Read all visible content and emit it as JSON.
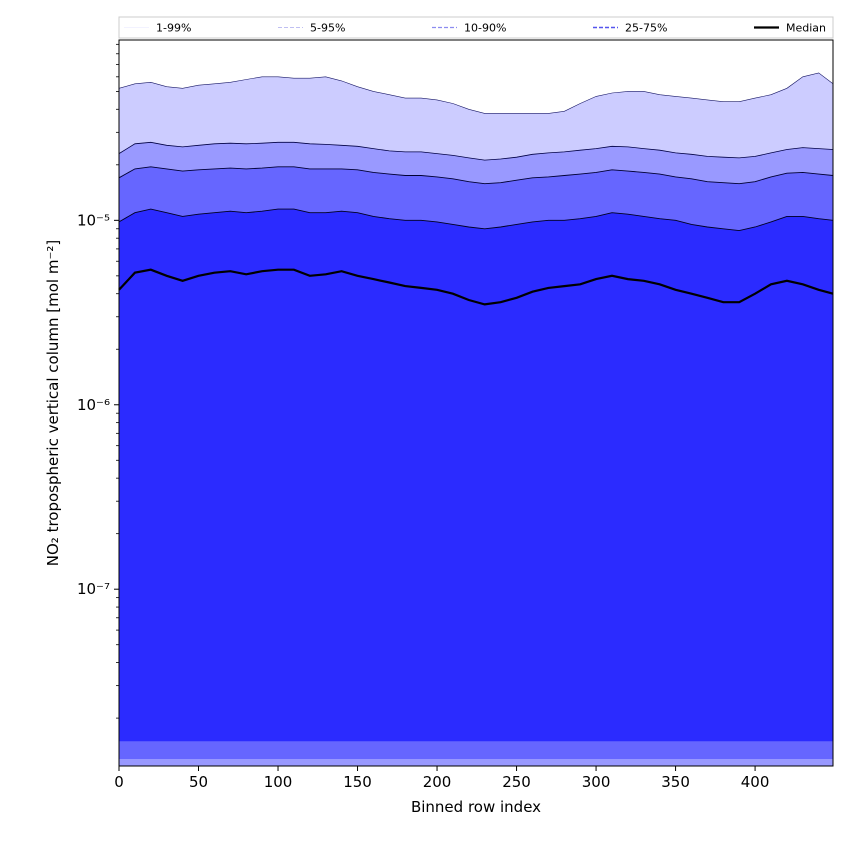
{
  "chart_data": {
    "type": "area",
    "title": "",
    "xlabel": "Binned row index",
    "ylabel": "NO₂ tropospheric vertical column [mol m⁻²]",
    "xlim": [
      0,
      449
    ],
    "ylim": [
      1.1e-08,
      9.5e-05
    ],
    "yscale": "log",
    "grid": false,
    "legend_position": "top",
    "x_ticks": [
      0,
      50,
      100,
      150,
      200,
      250,
      300,
      350,
      400
    ],
    "x_tick_labels": [
      "0",
      "50",
      "100",
      "150",
      "200",
      "250",
      "300",
      "350",
      "400"
    ],
    "y_ticks": [
      1e-07,
      1e-06,
      1e-05
    ],
    "y_tick_labels": [
      "10⁻⁷",
      "10⁻⁶",
      "10⁻⁵"
    ],
    "legend": [
      {
        "label": "1-99%",
        "color": "#e6e6ff",
        "style": "solid",
        "width": 0.6
      },
      {
        "label": "5-95%",
        "color": "#aaaaee",
        "style": "dashed",
        "width": 0.7
      },
      {
        "label": "10-90%",
        "color": "#8c8cf0",
        "style": "dashed",
        "width": 1.2
      },
      {
        "label": "25-75%",
        "color": "#5555ee",
        "style": "dashed",
        "width": 1.5
      },
      {
        "label": "Median",
        "color": "#000000",
        "style": "solid",
        "width": 2.2
      }
    ],
    "band_colors": {
      "p1_p99": "#ccccff",
      "p5_p95": "#9999ff",
      "p10_p90": "#6666ff",
      "p25_p75": "#2b2bff",
      "below": "#2b2bff"
    },
    "x": [
      0,
      10,
      20,
      30,
      40,
      50,
      60,
      70,
      80,
      90,
      100,
      110,
      120,
      130,
      140,
      150,
      160,
      170,
      180,
      190,
      200,
      210,
      220,
      230,
      240,
      250,
      260,
      270,
      280,
      290,
      300,
      310,
      320,
      330,
      340,
      350,
      360,
      370,
      380,
      390,
      400,
      410,
      420,
      430,
      440,
      449
    ],
    "series": [
      {
        "name": "Median",
        "values": [
          4.2e-06,
          5.2e-06,
          5.4e-06,
          5e-06,
          4.7e-06,
          5e-06,
          5.2e-06,
          5.3e-06,
          5.1e-06,
          5.3e-06,
          5.4e-06,
          5.4e-06,
          5e-06,
          5.1e-06,
          5.3e-06,
          5e-06,
          4.8e-06,
          4.6e-06,
          4.4e-06,
          4.3e-06,
          4.2e-06,
          4e-06,
          3.7e-06,
          3.5e-06,
          3.6e-06,
          3.8e-06,
          4.1e-06,
          4.3e-06,
          4.4e-06,
          4.5e-06,
          4.8e-06,
          5e-06,
          4.8e-06,
          4.7e-06,
          4.5e-06,
          4.2e-06,
          4e-06,
          3.8e-06,
          3.6e-06,
          3.6e-06,
          4e-06,
          4.5e-06,
          4.7e-06,
          4.5e-06,
          4.2e-06,
          4e-06
        ]
      },
      {
        "name": "25%",
        "values": [
          1.5e-08,
          1.5e-08,
          1.5e-08,
          1.5e-08,
          1.5e-08,
          1.5e-08,
          1.5e-08,
          1.5e-08,
          1.5e-08,
          1.5e-08,
          1.5e-08,
          1.5e-08,
          1.5e-08,
          1.5e-08,
          1.5e-08,
          1.5e-08,
          1.5e-08,
          1.5e-08,
          1.5e-08,
          1.5e-08,
          1.5e-08,
          1.5e-08,
          1.5e-08,
          1.5e-08,
          1.5e-08,
          1.5e-08,
          1.5e-08,
          1.5e-08,
          1.5e-08,
          1.5e-08,
          1.5e-08,
          1.5e-08,
          1.5e-08,
          1.5e-08,
          1.5e-08,
          1.5e-08,
          1.5e-08,
          1.5e-08,
          1.5e-08,
          1.5e-08,
          1.5e-08,
          1.5e-08,
          1.5e-08,
          1.5e-08,
          1.5e-08,
          1.5e-08
        ]
      },
      {
        "name": "75%",
        "values": [
          9.8e-06,
          1.1e-05,
          1.15e-05,
          1.1e-05,
          1.05e-05,
          1.08e-05,
          1.1e-05,
          1.12e-05,
          1.1e-05,
          1.12e-05,
          1.15e-05,
          1.15e-05,
          1.1e-05,
          1.1e-05,
          1.12e-05,
          1.1e-05,
          1.05e-05,
          1.02e-05,
          1e-05,
          1e-05,
          9.8e-06,
          9.5e-06,
          9.2e-06,
          9e-06,
          9.2e-06,
          9.5e-06,
          9.8e-06,
          1e-05,
          1e-05,
          1.02e-05,
          1.05e-05,
          1.1e-05,
          1.08e-05,
          1.05e-05,
          1.02e-05,
          1e-05,
          9.5e-06,
          9.2e-06,
          9e-06,
          8.8e-06,
          9.2e-06,
          9.8e-06,
          1.05e-05,
          1.05e-05,
          1.02e-05,
          1e-05
        ]
      },
      {
        "name": "10%",
        "values": [
          1.2e-08,
          1.2e-08,
          1.2e-08,
          1.2e-08,
          1.2e-08,
          1.2e-08,
          1.2e-08,
          1.2e-08,
          1.2e-08,
          1.2e-08,
          1.2e-08,
          1.2e-08,
          1.2e-08,
          1.2e-08,
          1.2e-08,
          1.2e-08,
          1.2e-08,
          1.2e-08,
          1.2e-08,
          1.2e-08,
          1.2e-08,
          1.2e-08,
          1.2e-08,
          1.2e-08,
          1.2e-08,
          1.2e-08,
          1.2e-08,
          1.2e-08,
          1.2e-08,
          1.2e-08,
          1.2e-08,
          1.2e-08,
          1.2e-08,
          1.2e-08,
          1.2e-08,
          1.2e-08,
          1.2e-08,
          1.2e-08,
          1.2e-08,
          1.2e-08,
          1.2e-08,
          1.2e-08,
          1.2e-08,
          1.2e-08,
          1.2e-08,
          1.2e-08
        ]
      },
      {
        "name": "90%",
        "values": [
          1.7e-05,
          1.9e-05,
          1.95e-05,
          1.9e-05,
          1.85e-05,
          1.88e-05,
          1.9e-05,
          1.92e-05,
          1.9e-05,
          1.92e-05,
          1.95e-05,
          1.95e-05,
          1.9e-05,
          1.9e-05,
          1.9e-05,
          1.88e-05,
          1.82e-05,
          1.78e-05,
          1.75e-05,
          1.75e-05,
          1.72e-05,
          1.68e-05,
          1.62e-05,
          1.58e-05,
          1.6e-05,
          1.65e-05,
          1.7e-05,
          1.72e-05,
          1.75e-05,
          1.78e-05,
          1.82e-05,
          1.88e-05,
          1.85e-05,
          1.82e-05,
          1.78e-05,
          1.72e-05,
          1.68e-05,
          1.62e-05,
          1.6e-05,
          1.58e-05,
          1.62e-05,
          1.72e-05,
          1.8e-05,
          1.82e-05,
          1.78e-05,
          1.75e-05
        ]
      },
      {
        "name": "5%",
        "values": [
          1.1e-08,
          1.1e-08,
          1.1e-08,
          1.1e-08,
          1.1e-08,
          1.1e-08,
          1.1e-08,
          1.1e-08,
          1.1e-08,
          1.1e-08,
          1.1e-08,
          1.1e-08,
          1.1e-08,
          1.1e-08,
          1.1e-08,
          1.1e-08,
          1.1e-08,
          1.1e-08,
          1.1e-08,
          1.1e-08,
          1.1e-08,
          1.1e-08,
          1.1e-08,
          1.1e-08,
          1.1e-08,
          1.1e-08,
          1.1e-08,
          1.1e-08,
          1.1e-08,
          1.1e-08,
          1.1e-08,
          1.1e-08,
          1.1e-08,
          1.1e-08,
          1.1e-08,
          1.1e-08,
          1.1e-08,
          1.1e-08,
          1.1e-08,
          1.1e-08,
          1.1e-08,
          1.1e-08,
          1.1e-08,
          1.1e-08,
          1.1e-08,
          1.1e-08
        ]
      },
      {
        "name": "95%",
        "values": [
          2.3e-05,
          2.6e-05,
          2.65e-05,
          2.55e-05,
          2.5e-05,
          2.55e-05,
          2.6e-05,
          2.62e-05,
          2.6e-05,
          2.62e-05,
          2.65e-05,
          2.65e-05,
          2.6e-05,
          2.58e-05,
          2.55e-05,
          2.52e-05,
          2.45e-05,
          2.38e-05,
          2.35e-05,
          2.35e-05,
          2.3e-05,
          2.25e-05,
          2.18e-05,
          2.12e-05,
          2.15e-05,
          2.2e-05,
          2.28e-05,
          2.32e-05,
          2.35e-05,
          2.4e-05,
          2.45e-05,
          2.52e-05,
          2.5e-05,
          2.45e-05,
          2.4e-05,
          2.32e-05,
          2.28e-05,
          2.22e-05,
          2.2e-05,
          2.18e-05,
          2.22e-05,
          2.32e-05,
          2.42e-05,
          2.48e-05,
          2.45e-05,
          2.42e-05
        ]
      },
      {
        "name": "1%",
        "values": [
          1.1e-08,
          1.1e-08,
          1.1e-08,
          1.1e-08,
          1.1e-08,
          1.1e-08,
          1.1e-08,
          1.1e-08,
          1.1e-08,
          1.1e-08,
          1.1e-08,
          1.1e-08,
          1.1e-08,
          1.1e-08,
          1.1e-08,
          1.1e-08,
          1.1e-08,
          1.1e-08,
          1.1e-08,
          1.1e-08,
          1.1e-08,
          1.1e-08,
          1.1e-08,
          1.1e-08,
          1.1e-08,
          1.1e-08,
          1.1e-08,
          1.1e-08,
          1.1e-08,
          1.1e-08,
          1.1e-08,
          1.1e-08,
          1.1e-08,
          1.1e-08,
          1.1e-08,
          1.1e-08,
          1.1e-08,
          1.1e-08,
          1.1e-08,
          1.1e-08,
          1.1e-08,
          1.1e-08,
          1.1e-08,
          1.1e-08,
          1.1e-08,
          1.1e-08
        ]
      },
      {
        "name": "99%",
        "values": [
          5.2e-05,
          5.5e-05,
          5.6e-05,
          5.3e-05,
          5.2e-05,
          5.4e-05,
          5.5e-05,
          5.6e-05,
          5.8e-05,
          6e-05,
          6e-05,
          5.9e-05,
          5.9e-05,
          6e-05,
          5.7e-05,
          5.3e-05,
          5e-05,
          4.8e-05,
          4.6e-05,
          4.6e-05,
          4.5e-05,
          4.3e-05,
          4e-05,
          3.8e-05,
          3.8e-05,
          3.8e-05,
          3.8e-05,
          3.8e-05,
          3.9e-05,
          4.3e-05,
          4.7e-05,
          4.9e-05,
          5e-05,
          5e-05,
          4.8e-05,
          4.7e-05,
          4.6e-05,
          4.5e-05,
          4.4e-05,
          4.4e-05,
          4.6e-05,
          4.8e-05,
          5.2e-05,
          6e-05,
          6.3e-05,
          5.5e-05
        ]
      }
    ]
  }
}
